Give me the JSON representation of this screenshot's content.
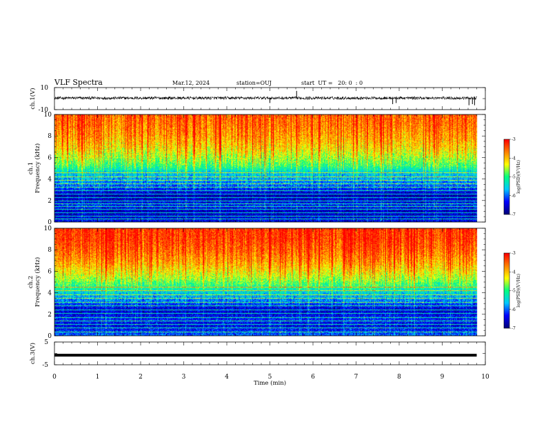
{
  "header": {
    "title": "VLF Spectra",
    "date": "Mar.12, 2024",
    "station": "station=OUJ",
    "start_ut": "start  UT =   20: 0  : 0"
  },
  "chart_data": [
    {
      "type": "line",
      "panel": "ch1-waveform",
      "ylabel": "ch.1(V)",
      "yticklabels": [
        "10",
        "-10"
      ],
      "ylim": [
        -10,
        10
      ],
      "xlim": [
        0,
        10
      ],
      "series": [
        {
          "color": "#000000",
          "x_range": [
            0,
            9.8
          ],
          "baseline": 0.5,
          "noise": 1.3,
          "spikes": [
            {
              "x": 5.0,
              "y": -4
            },
            {
              "x": 5.62,
              "y": 7
            },
            {
              "x": 7.85,
              "y": -5
            },
            {
              "x": 7.93,
              "y": -4
            },
            {
              "x": 9.62,
              "y": -6
            },
            {
              "x": 9.7,
              "y": -5
            },
            {
              "x": 9.75,
              "y": -6
            }
          ]
        }
      ]
    },
    {
      "type": "heatmap",
      "panel": "ch1-spectrogram",
      "ylabel_line1": "ch.1",
      "ylabel_line2": "Frequency (kHz)",
      "yticks": [
        0,
        2,
        4,
        6,
        8,
        10
      ],
      "ylim": [
        0,
        10
      ],
      "xlim": [
        0,
        10
      ],
      "data_x_range": [
        0,
        9.8
      ],
      "colorbar": {
        "ticks": [
          "-3",
          "-4",
          "-5",
          "-6",
          "-7"
        ],
        "range": [
          -7,
          -3
        ],
        "label": "log(PSD)(V²/Hz)",
        "colormap": [
          "#00007a",
          "#0000ff",
          "#00c8ff",
          "#00ff80",
          "#ffff00",
          "#ff8000",
          "#ff0000"
        ]
      },
      "psd_profile": [
        {
          "f": 0.0,
          "v": -6.4
        },
        {
          "f": 0.5,
          "v": -6.6
        },
        {
          "f": 1.0,
          "v": -6.7
        },
        {
          "f": 1.6,
          "v": -6.3
        },
        {
          "f": 2.0,
          "v": -6.6
        },
        {
          "f": 2.5,
          "v": -6.8
        },
        {
          "f": 3.2,
          "v": -6.2
        },
        {
          "f": 4.0,
          "v": -5.8
        },
        {
          "f": 4.6,
          "v": -5.6
        },
        {
          "f": 5.2,
          "v": -5.0
        },
        {
          "f": 6.0,
          "v": -4.6
        },
        {
          "f": 7.0,
          "v": -4.2
        },
        {
          "f": 8.0,
          "v": -3.9
        },
        {
          "f": 9.0,
          "v": -3.7
        },
        {
          "f": 10.0,
          "v": -3.6
        }
      ],
      "horizontal_lines_khz": [
        0.35,
        0.6,
        0.9,
        1.2,
        1.45,
        1.75,
        2.0,
        2.3,
        2.6,
        2.95,
        3.3,
        3.6,
        3.9,
        4.25,
        4.6
      ]
    },
    {
      "type": "heatmap",
      "panel": "ch2-spectrogram",
      "ylabel_line1": "ch.2",
      "ylabel_line2": "Frequency (kHz)",
      "yticks": [
        0,
        2,
        4,
        6,
        8,
        10
      ],
      "ylim": [
        0,
        10
      ],
      "xlim": [
        0,
        10
      ],
      "data_x_range": [
        0,
        9.8
      ],
      "colorbar": {
        "ticks": [
          "-3",
          "-4",
          "-5",
          "-6",
          "-7"
        ],
        "range": [
          -7,
          -3
        ],
        "label": "log(PSD)(V²/Hz)",
        "colormap": [
          "#00007a",
          "#0000ff",
          "#00c8ff",
          "#00ff80",
          "#ffff00",
          "#ff8000",
          "#ff0000"
        ]
      },
      "psd_profile": [
        {
          "f": 0.0,
          "v": -6.0
        },
        {
          "f": 0.5,
          "v": -6.3
        },
        {
          "f": 1.0,
          "v": -6.5
        },
        {
          "f": 1.6,
          "v": -6.3
        },
        {
          "f": 2.0,
          "v": -6.5
        },
        {
          "f": 2.5,
          "v": -6.6
        },
        {
          "f": 3.2,
          "v": -6.0
        },
        {
          "f": 4.0,
          "v": -5.6
        },
        {
          "f": 4.6,
          "v": -5.1
        },
        {
          "f": 5.2,
          "v": -4.7
        },
        {
          "f": 6.0,
          "v": -4.3
        },
        {
          "f": 7.0,
          "v": -3.9
        },
        {
          "f": 8.0,
          "v": -3.6
        },
        {
          "f": 9.0,
          "v": -3.4
        },
        {
          "f": 10.0,
          "v": -3.35
        }
      ],
      "horizontal_lines_khz": [
        0.4,
        0.75,
        1.1,
        1.4,
        1.7,
        2.1,
        2.45,
        2.8,
        3.15,
        3.5,
        3.85,
        4.2,
        4.55
      ]
    },
    {
      "type": "line",
      "panel": "ch3-waveform",
      "ylabel": "ch.3(V)",
      "yticklabels": [
        "5",
        "-5"
      ],
      "ylim": [
        -5,
        5
      ],
      "xlim": [
        0,
        10
      ],
      "xticks": [
        0,
        1,
        2,
        3,
        4,
        5,
        6,
        7,
        8,
        9,
        10
      ],
      "xlabel": "Time (min)",
      "series": [
        {
          "color": "#000000",
          "x_range": [
            0,
            9.8
          ],
          "value": -0.8
        }
      ]
    }
  ]
}
